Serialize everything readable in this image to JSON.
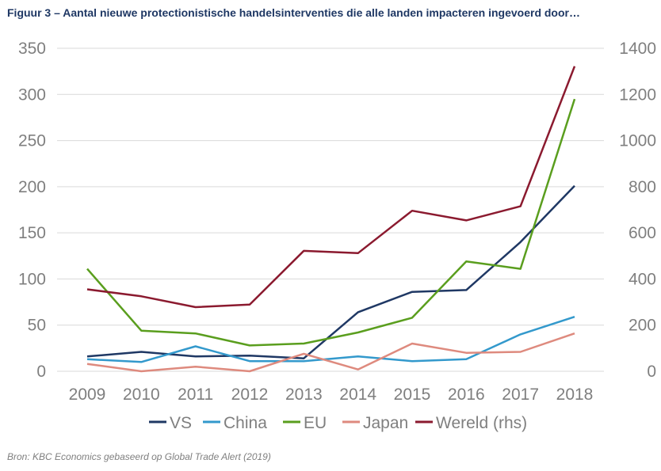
{
  "title": "Figuur 3 – Aantal nieuwe protectionistische handelsinterventies die alle landen impacteren ingevoerd door…",
  "source": "Bron: KBC Economics gebaseerd op Global Trade Alert (2019)",
  "chart_data": {
    "type": "line",
    "title": "Figuur 3 – Aantal nieuwe protectionistische handelsinterventies die alle landen impacteren ingevoerd door…",
    "xlabel": "",
    "ylabel": "",
    "categories": [
      "2009",
      "2010",
      "2011",
      "2012",
      "2013",
      "2014",
      "2015",
      "2016",
      "2017",
      "2018"
    ],
    "ylim": [
      0,
      350
    ],
    "y2lim": [
      0,
      1400
    ],
    "yticks": [
      "0",
      "50",
      "100",
      "150",
      "200",
      "250",
      "300",
      "350"
    ],
    "y2ticks": [
      "0",
      "200",
      "400",
      "600",
      "800",
      "1000",
      "1200",
      "1400"
    ],
    "grid": true,
    "legend_position": "bottom",
    "series": [
      {
        "name": "VS",
        "axis": "left",
        "color": "#1f3864",
        "values": [
          16,
          21,
          16,
          17,
          14,
          64,
          86,
          88,
          140,
          201
        ]
      },
      {
        "name": "China",
        "axis": "left",
        "color": "#3399cc",
        "values": [
          13,
          10,
          27,
          11,
          11,
          16,
          11,
          13,
          40,
          59
        ]
      },
      {
        "name": "EU",
        "axis": "left",
        "color": "#5a9e1e",
        "values": [
          111,
          44,
          41,
          28,
          30,
          42,
          58,
          119,
          111,
          295
        ]
      },
      {
        "name": "Japan",
        "axis": "left",
        "color": "#de8a7e",
        "values": [
          8,
          0,
          5,
          0,
          19,
          2,
          30,
          20,
          21,
          41
        ]
      },
      {
        "name": "Wereld (rhs)",
        "axis": "right",
        "color": "#8b1a2f",
        "values": [
          355,
          325,
          278,
          289,
          522,
          512,
          696,
          654,
          715,
          1322
        ]
      }
    ]
  }
}
